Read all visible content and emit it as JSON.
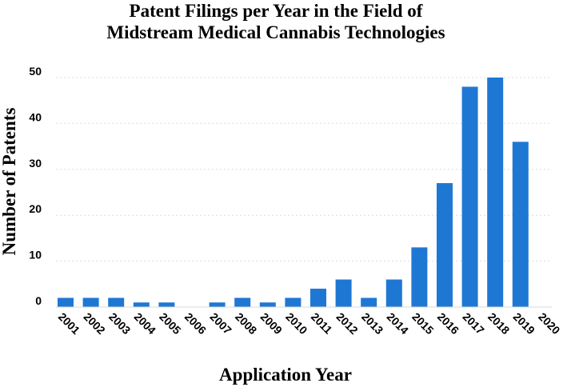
{
  "chart_data": {
    "type": "bar",
    "title": [
      "Patent Filings per Year in the Field of",
      "Midstream Medical Cannabis Technologies"
    ],
    "xlabel": "Application Year",
    "ylabel": "Number of Patents",
    "categories": [
      "2001",
      "2002",
      "2003",
      "2004",
      "2005",
      "2006",
      "2007",
      "2008",
      "2009",
      "2010",
      "2011",
      "2012",
      "2013",
      "2014",
      "2015",
      "2016",
      "2017",
      "2018",
      "2019",
      "2020"
    ],
    "values": [
      2,
      2,
      2,
      1,
      1,
      0,
      1,
      2,
      1,
      2,
      4,
      6,
      2,
      6,
      13,
      27,
      48,
      50,
      36,
      0
    ],
    "yticks": [
      0,
      10,
      20,
      30,
      40,
      50
    ],
    "ylim": [
      0,
      50
    ],
    "grid": true,
    "bar_color": "#1f77d4"
  }
}
